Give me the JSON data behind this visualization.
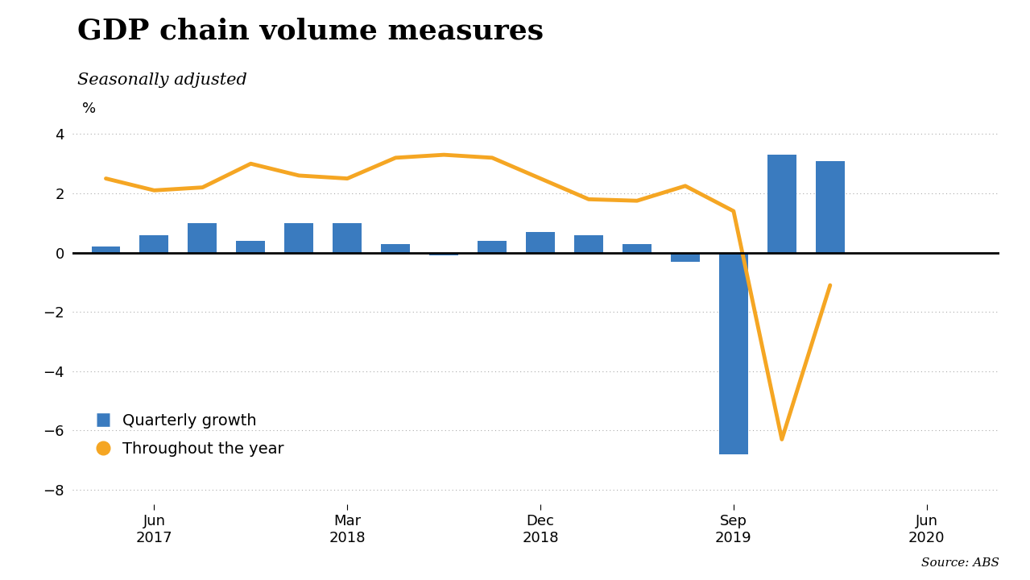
{
  "title": "GDP chain volume measures",
  "subtitle": "Seasonally adjusted",
  "ylabel": "%",
  "source": "Source: ABS",
  "bar_color": "#3a7bbf",
  "line_color": "#f5a623",
  "background_color": "#ffffff",
  "ylim": [
    -8.5,
    5.0
  ],
  "yticks": [
    -8,
    -6,
    -4,
    -2,
    0,
    2,
    4
  ],
  "x_labels": [
    "Jun\n2017",
    "Mar\n2018",
    "Dec\n2018",
    "Sep\n2019",
    "Jun\n2020"
  ],
  "quarterly_growth": [
    0.2,
    0.6,
    1.0,
    0.4,
    1.0,
    1.0,
    0.3,
    -0.1,
    0.4,
    0.7,
    0.6,
    0.3,
    -0.3,
    -6.8,
    3.3,
    3.1
  ],
  "throughout_year": [
    2.5,
    2.1,
    2.2,
    3.0,
    2.6,
    2.5,
    3.2,
    3.3,
    3.2,
    2.5,
    1.8,
    1.75,
    2.25,
    1.4,
    -6.3,
    -1.1
  ],
  "n_bars": 16,
  "legend_bar_label": "Quarterly growth",
  "legend_line_label": "Throughout the year",
  "bar_width": 0.6,
  "line_width": 3.5,
  "title_fontsize": 26,
  "subtitle_fontsize": 15,
  "tick_fontsize": 13,
  "legend_fontsize": 14
}
